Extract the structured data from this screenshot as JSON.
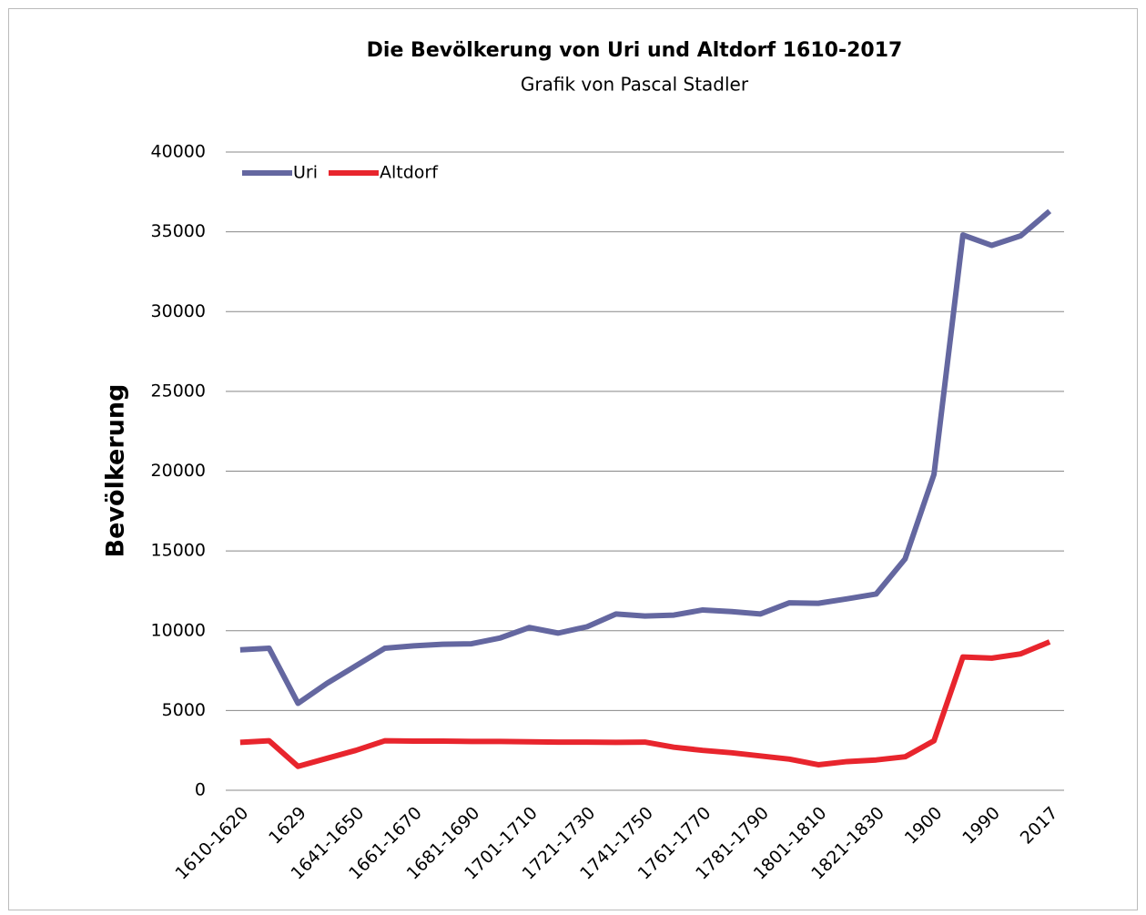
{
  "chart_data": {
    "type": "line",
    "title": "Die Bevölkerung von Uri und Altdorf 1610-2017",
    "subtitle": "Grafik von Pascal Stadler",
    "y_label": "Bevölkerung",
    "categories": [
      "1610-1620",
      null,
      "1629",
      null,
      "1641-1650",
      null,
      "1661-1670",
      null,
      "1681-1690",
      null,
      "1701-1710",
      null,
      "1721-1730",
      null,
      "1741-1750",
      null,
      "1761-1770",
      null,
      "1781-1790",
      null,
      "1801-1810",
      null,
      "1821-1830",
      null,
      "1900",
      null,
      "1990",
      null,
      "2017"
    ],
    "series": [
      {
        "name": "Uri",
        "color": "#6467a0",
        "values": [
          8800,
          8900,
          5450,
          6700,
          7800,
          8900,
          9050,
          9150,
          9180,
          9550,
          10200,
          9850,
          10250,
          11050,
          10920,
          10980,
          11300,
          11200,
          11050,
          11750,
          11720,
          12000,
          12300,
          14500,
          19800,
          34800,
          34150,
          34750,
          36300
        ]
      },
      {
        "name": "Altdorf",
        "color": "#e8252d",
        "values": [
          3000,
          3100,
          1500,
          2000,
          2500,
          3100,
          3080,
          3080,
          3060,
          3060,
          3040,
          3020,
          3020,
          3000,
          3020,
          2700,
          2500,
          2350,
          2150,
          1950,
          1600,
          1800,
          1900,
          2100,
          3100,
          8350,
          8280,
          8550,
          9300
        ]
      }
    ],
    "ylim": [
      0,
      40000
    ],
    "yticks": [
      0,
      5000,
      10000,
      15000,
      20000,
      25000,
      30000,
      35000,
      40000
    ],
    "grid": true,
    "legend": "top-left"
  }
}
